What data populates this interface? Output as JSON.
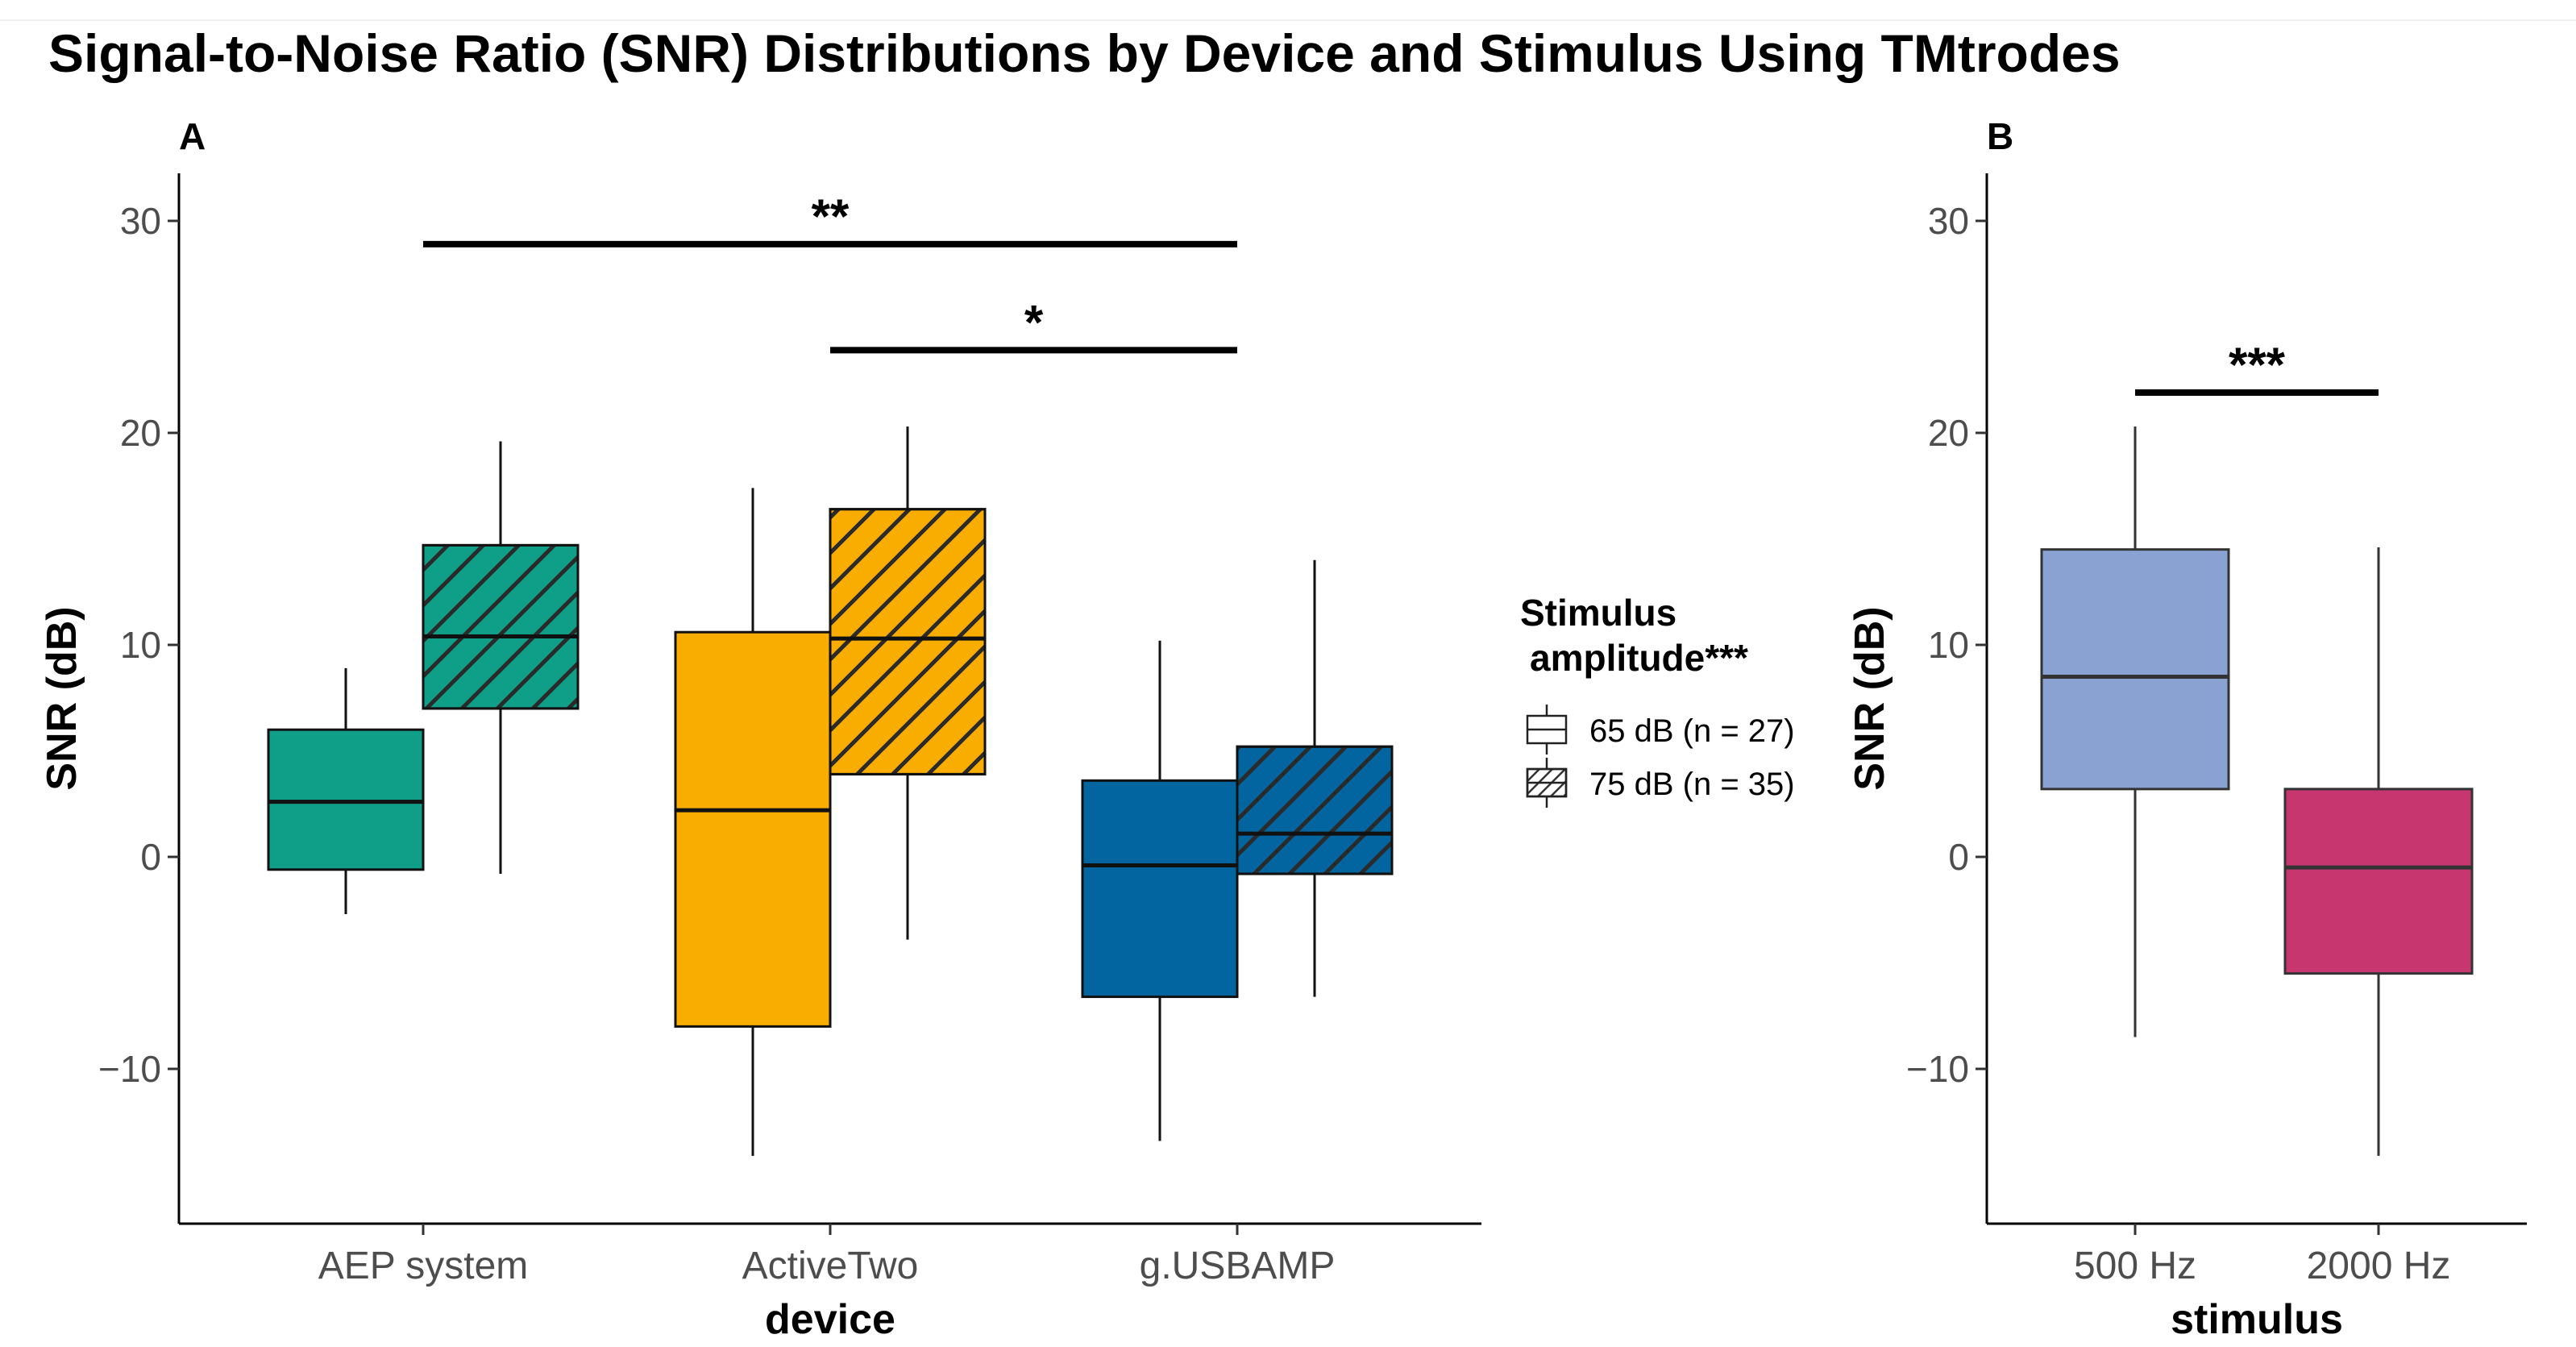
{
  "title": "Signal-to-Noise Ratio (SNR) Distributions by Device and Stimulus Using TMtrodes",
  "chart_data": [
    {
      "panel": "A",
      "type": "boxplot",
      "xlabel": "device",
      "ylabel": "SNR (dB)",
      "ylim": [
        -17,
        32
      ],
      "yticks": [
        -10,
        0,
        10,
        20,
        30
      ],
      "ytick_labels": [
        "−10",
        "0",
        "10",
        "20",
        "30"
      ],
      "categories": [
        "AEP system",
        "ActiveTwo",
        "g.USBAMP"
      ],
      "device_colors": {
        "AEP system": "#0f9e88",
        "ActiveTwo": "#f8ad00",
        "g.USBAMP": "#03659f"
      },
      "legend": {
        "title_line1": "Stimulus",
        "title_line2": "amplitude***",
        "entries": [
          {
            "label": "65 dB (n = 27)",
            "pattern": "none"
          },
          {
            "label": "75 dB (n = 35)",
            "pattern": "stripe"
          }
        ]
      },
      "boxes": [
        {
          "device": "AEP system",
          "stimulus": "65 dB",
          "pattern": "none",
          "min": -2.7,
          "q1": -0.6,
          "median": 2.6,
          "q3": 6.0,
          "max": 8.9
        },
        {
          "device": "AEP system",
          "stimulus": "75 dB",
          "pattern": "stripe",
          "min": -0.8,
          "q1": 7.0,
          "median": 10.4,
          "q3": 14.7,
          "max": 19.6
        },
        {
          "device": "ActiveTwo",
          "stimulus": "65 dB",
          "pattern": "none",
          "min": -14.1,
          "q1": -8.0,
          "median": 2.2,
          "q3": 10.6,
          "max": 17.4
        },
        {
          "device": "ActiveTwo",
          "stimulus": "75 dB",
          "pattern": "stripe",
          "min": -3.9,
          "q1": 3.9,
          "median": 10.3,
          "q3": 16.4,
          "max": 20.3
        },
        {
          "device": "g.USBAMP",
          "stimulus": "65 dB",
          "pattern": "none",
          "min": -13.4,
          "q1": -6.6,
          "median": -0.4,
          "q3": 3.6,
          "max": 10.2
        },
        {
          "device": "g.USBAMP",
          "stimulus": "75 dB",
          "pattern": "stripe",
          "min": -6.6,
          "q1": -0.8,
          "median": 1.1,
          "q3": 5.2,
          "max": 14.0
        }
      ],
      "significance": [
        {
          "from": "AEP system",
          "to": "g.USBAMP",
          "y": 28.9,
          "label": "**"
        },
        {
          "from": "ActiveTwo",
          "to": "g.USBAMP",
          "y": 23.9,
          "label": "*"
        }
      ]
    },
    {
      "panel": "B",
      "type": "boxplot",
      "xlabel": "stimulus",
      "ylabel": "SNR (dB)",
      "ylim": [
        -17,
        32
      ],
      "yticks": [
        -10,
        0,
        10,
        20,
        30
      ],
      "ytick_labels": [
        "−10",
        "0",
        "10",
        "20",
        "30"
      ],
      "categories": [
        "500 Hz",
        "2000 Hz"
      ],
      "boxes": [
        {
          "category": "500 Hz",
          "color": "#8aa2d2",
          "min": -8.5,
          "q1": 3.2,
          "median": 8.5,
          "q3": 14.5,
          "max": 20.3
        },
        {
          "category": "2000 Hz",
          "color": "#c83670",
          "min": -14.1,
          "q1": -5.5,
          "median": -0.5,
          "q3": 3.2,
          "max": 14.6
        }
      ],
      "significance": [
        {
          "from": "500 Hz",
          "to": "2000 Hz",
          "y": 21.9,
          "label": "***"
        }
      ]
    }
  ]
}
